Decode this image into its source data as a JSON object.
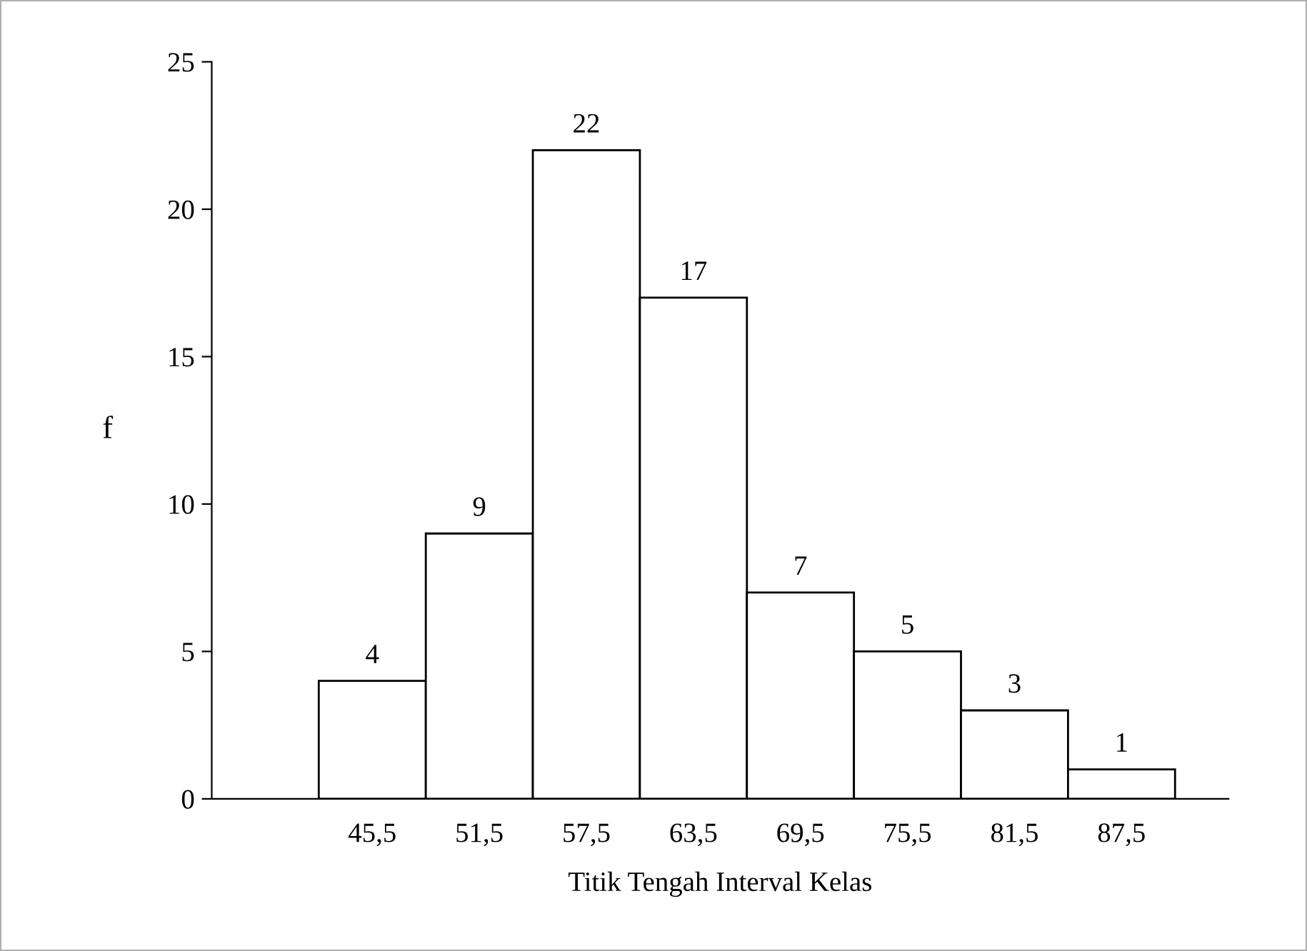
{
  "chart_data": {
    "type": "bar",
    "xlabel": "Titik Tengah Interval Kelas",
    "ylabel": "f",
    "categories": [
      "45,5",
      "51,5",
      "57,5",
      "63,5",
      "69,5",
      "75,5",
      "81,5",
      "87,5"
    ],
    "values": [
      4,
      9,
      22,
      17,
      7,
      5,
      3,
      1
    ],
    "color": "#ffffff",
    "ylim": [
      0,
      25
    ],
    "yticks": [
      0,
      5,
      10,
      15,
      20,
      25
    ],
    "data_labels": true,
    "grid": false,
    "legend": false
  }
}
